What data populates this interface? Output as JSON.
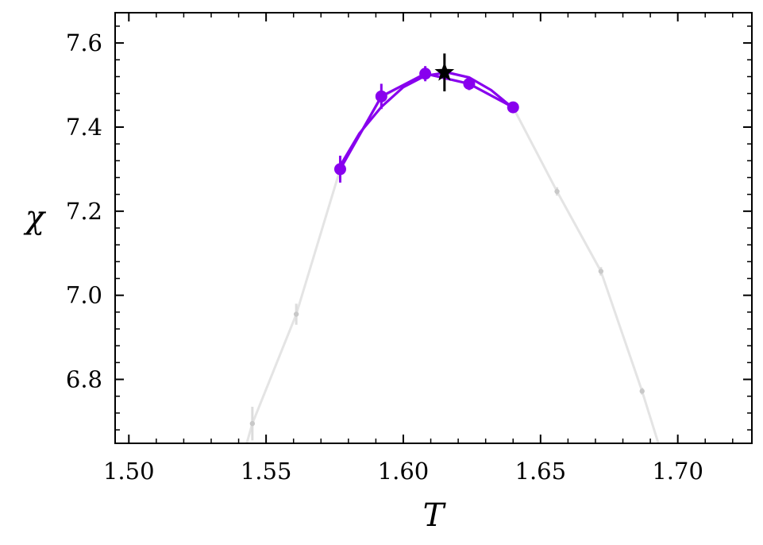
{
  "chart_data": {
    "type": "line",
    "xlabel": "T",
    "ylabel": "χ",
    "xlim": [
      1.495,
      1.727
    ],
    "ylim": [
      6.648,
      7.672
    ],
    "x_ticks": [
      "1.50",
      "1.55",
      "1.60",
      "1.65",
      "1.70"
    ],
    "y_ticks": [
      "6.8",
      "7.0",
      "7.2",
      "7.4",
      "7.6"
    ],
    "x_tick_values": [
      1.5,
      1.55,
      1.6,
      1.65,
      1.7
    ],
    "y_tick_values": [
      6.8,
      7.0,
      7.2,
      7.4,
      7.6
    ],
    "x_minor_step": 0.01,
    "y_minor_step": 0.04,
    "grid": false,
    "series": [
      {
        "role": "background",
        "color": "#c8c8c8",
        "points": [
          {
            "x": 1.53,
            "y": 6.35,
            "err": 0.0
          },
          {
            "x": 1.545,
            "y": 6.695,
            "err": 0.04
          },
          {
            "x": 1.561,
            "y": 6.955,
            "err": 0.025
          },
          {
            "x": 1.577,
            "y": 7.3,
            "err": 0.02
          },
          {
            "x": 1.592,
            "y": 7.47,
            "err": 0.02
          },
          {
            "x": 1.608,
            "y": 7.527,
            "err": 0.012
          },
          {
            "x": 1.624,
            "y": 7.503,
            "err": 0.012
          },
          {
            "x": 1.64,
            "y": 7.447,
            "err": 0.008
          },
          {
            "x": 1.656,
            "y": 7.247,
            "err": 0.01
          },
          {
            "x": 1.672,
            "y": 7.057,
            "err": 0.01
          },
          {
            "x": 1.687,
            "y": 6.772,
            "err": 0.008
          },
          {
            "x": 1.7,
            "y": 6.5,
            "err": 0.0
          }
        ]
      },
      {
        "role": "highlight",
        "color": "#8800ee",
        "points": [
          {
            "x": 1.577,
            "y": 7.3,
            "err": 0.032
          },
          {
            "x": 1.592,
            "y": 7.473,
            "err": 0.03
          },
          {
            "x": 1.608,
            "y": 7.527,
            "err": 0.018
          },
          {
            "x": 1.624,
            "y": 7.503,
            "err": 0.015
          },
          {
            "x": 1.64,
            "y": 7.447,
            "err": 0.008
          }
        ],
        "fit_curve": [
          {
            "x": 1.577,
            "y": 7.308
          },
          {
            "x": 1.584,
            "y": 7.385
          },
          {
            "x": 1.592,
            "y": 7.448
          },
          {
            "x": 1.6,
            "y": 7.495
          },
          {
            "x": 1.608,
            "y": 7.522
          },
          {
            "x": 1.616,
            "y": 7.53
          },
          {
            "x": 1.624,
            "y": 7.518
          },
          {
            "x": 1.632,
            "y": 7.488
          },
          {
            "x": 1.64,
            "y": 7.445
          }
        ]
      }
    ],
    "peak_marker": {
      "x": 1.615,
      "y": 7.53,
      "err": 0.045,
      "color": "#000000",
      "shape": "star"
    }
  }
}
